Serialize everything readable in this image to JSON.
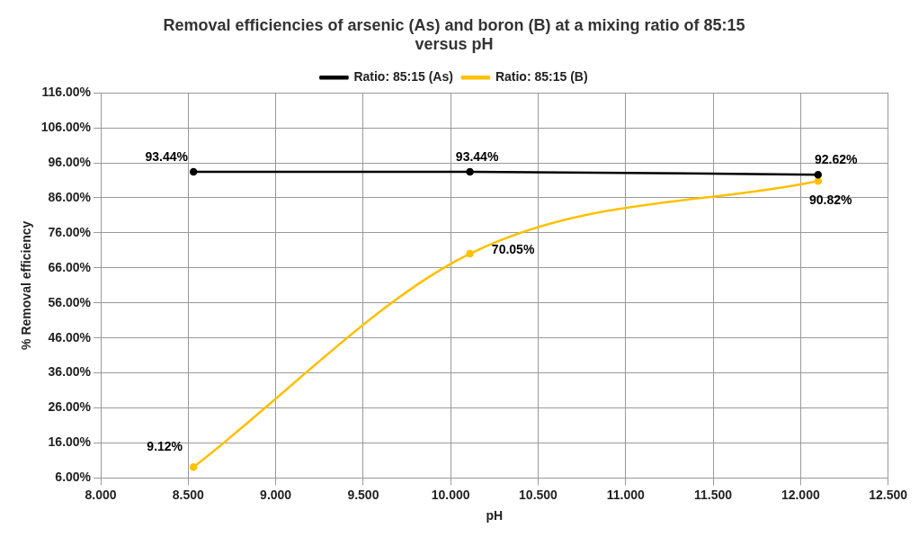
{
  "chart_data": {
    "type": "line",
    "title": "Removal efficiencies of arsenic (As) and boron (B) at a mixing ratio of 85:15 versus pH",
    "xlabel": "pH",
    "ylabel": "% Removal efficiency",
    "xlim": [
      8,
      12.5
    ],
    "xticks": [
      {
        "value": 8,
        "label": "8.000"
      },
      {
        "value": 8.5,
        "label": "8.500"
      },
      {
        "value": 9,
        "label": "9.000"
      },
      {
        "value": 9.5,
        "label": "9.500"
      },
      {
        "value": 10,
        "label": "10.000"
      },
      {
        "value": 10.5,
        "label": "10.500"
      },
      {
        "value": 11,
        "label": "11.000"
      },
      {
        "value": 11.5,
        "label": "11.500"
      },
      {
        "value": 12,
        "label": "12.000"
      },
      {
        "value": 12.5,
        "label": "12.500"
      }
    ],
    "ylim": [
      6,
      116
    ],
    "yticks": [
      {
        "value": 6,
        "label": "6.00%"
      },
      {
        "value": 16,
        "label": "16.00%"
      },
      {
        "value": 26,
        "label": "26.00%"
      },
      {
        "value": 36,
        "label": "36.00%"
      },
      {
        "value": 46,
        "label": "46.00%"
      },
      {
        "value": 56,
        "label": "56.00%"
      },
      {
        "value": 66,
        "label": "66.00%"
      },
      {
        "value": 76,
        "label": "76.00%"
      },
      {
        "value": 86,
        "label": "86.00%"
      },
      {
        "value": 96,
        "label": "96.00%"
      },
      {
        "value": 106,
        "label": "106.00%"
      },
      {
        "value": 116,
        "label": "116.00%"
      }
    ],
    "x": [
      8.53,
      10.11,
      12.1
    ],
    "series": [
      {
        "name": "Ratio: 85:15 (As)",
        "color": "#000000",
        "values": [
          93.44,
          93.44,
          92.62
        ],
        "value_labels": [
          "93.44%",
          "93.44%",
          "92.62%"
        ],
        "marker": "circle"
      },
      {
        "name": "Ratio: 85:15 (B)",
        "color": "#ffc000",
        "values": [
          9.12,
          70.05,
          90.82
        ],
        "value_labels": [
          "9.12%",
          "70.05%",
          "90.82%"
        ],
        "marker": "circle"
      }
    ],
    "grid": true,
    "legend": "top",
    "line_style": "solid"
  }
}
